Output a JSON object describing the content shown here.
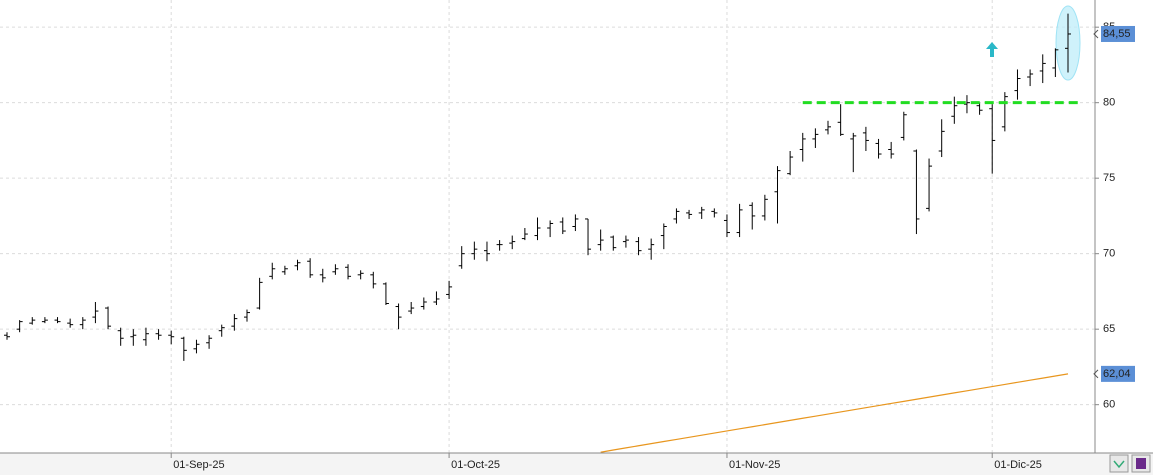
{
  "chart_data": {
    "type": "ohlc",
    "color": "#000000",
    "categories": [
      null,
      null,
      null,
      null,
      null,
      null,
      null,
      null,
      null,
      null,
      null,
      null,
      null,
      "01-Sep-25",
      null,
      null,
      null,
      null,
      null,
      null,
      null,
      null,
      null,
      null,
      null,
      null,
      null,
      null,
      null,
      null,
      null,
      null,
      null,
      null,
      null,
      "01-Oct-25",
      null,
      null,
      null,
      null,
      null,
      null,
      null,
      null,
      null,
      null,
      null,
      null,
      null,
      null,
      null,
      null,
      null,
      null,
      null,
      null,
      null,
      "01-Nov-25",
      null,
      null,
      null,
      null,
      null,
      null,
      null,
      null,
      null,
      null,
      null,
      null,
      null,
      null,
      null,
      null,
      null,
      null,
      null,
      null,
      "01-Dic-25",
      null,
      null,
      null,
      null,
      null,
      null
    ],
    "open": [
      64.6,
      65.0,
      65.4,
      65.5,
      65.6,
      65.4,
      65.3,
      65.8,
      66.4,
      64.9,
      64.5,
      64.3,
      64.7,
      64.6,
      64.4,
      63.7,
      64.1,
      64.9,
      65.2,
      65.8,
      66.4,
      68.5,
      68.8,
      69.2,
      69.5,
      68.6,
      68.8,
      69.1,
      68.6,
      68.6,
      68.0,
      66.5,
      66.2,
      66.5,
      66.8,
      67.3,
      69.2,
      70.0,
      70.2,
      70.6,
      70.7,
      71.0,
      71.2,
      71.7,
      72.1,
      71.8,
      72.3,
      70.6,
      71.1,
      70.8,
      70.8,
      70.3,
      71.2,
      72.3,
      72.7,
      72.7,
      72.8,
      72.2,
      71.4,
      73.2,
      72.5,
      74.1,
      75.3,
      76.9,
      77.6,
      78.2,
      78.7,
      77.6,
      78.0,
      77.3,
      76.9,
      77.7,
      76.8,
      73.0,
      76.8,
      79.1,
      79.9,
      79.8,
      79.6,
      78.4,
      80.8,
      81.7,
      82.1,
      82.3,
      83.6
    ],
    "high": [
      64.8,
      65.6,
      65.8,
      65.8,
      65.8,
      65.7,
      65.8,
      66.8,
      66.5,
      65.1,
      65.0,
      65.1,
      65.0,
      64.9,
      64.5,
      64.3,
      64.6,
      65.3,
      66.0,
      66.3,
      68.4,
      69.4,
      69.2,
      69.6,
      69.7,
      69.0,
      69.3,
      69.3,
      68.9,
      68.8,
      68.1,
      66.7,
      66.8,
      67.1,
      67.5,
      68.2,
      70.5,
      70.8,
      70.8,
      70.9,
      71.2,
      71.7,
      72.4,
      72.2,
      72.4,
      72.6,
      72.3,
      71.6,
      71.2,
      71.2,
      71.1,
      71.0,
      72.0,
      73.0,
      72.9,
      73.1,
      73.0,
      72.6,
      73.3,
      73.4,
      73.9,
      75.8,
      76.8,
      78.0,
      78.3,
      78.8,
      79.9,
      78.0,
      78.4,
      77.6,
      77.4,
      79.4,
      76.9,
      76.3,
      78.9,
      80.4,
      80.5,
      80.0,
      79.9,
      80.7,
      82.2,
      82.2,
      83.2,
      83.6,
      85.9
    ],
    "low": [
      64.3,
      64.8,
      65.3,
      65.4,
      65.4,
      65.1,
      65.0,
      65.4,
      65.0,
      63.9,
      63.9,
      63.9,
      64.3,
      64.0,
      62.9,
      63.4,
      63.7,
      64.5,
      64.9,
      65.5,
      66.3,
      68.3,
      68.6,
      68.9,
      68.4,
      68.1,
      68.6,
      68.3,
      68.3,
      67.7,
      66.6,
      65.0,
      66.0,
      66.3,
      66.6,
      67.0,
      69.0,
      69.6,
      69.5,
      70.2,
      70.3,
      70.9,
      70.9,
      71.1,
      71.3,
      71.5,
      69.9,
      70.2,
      70.2,
      70.4,
      69.9,
      69.6,
      70.3,
      72.0,
      72.3,
      72.3,
      72.4,
      71.1,
      71.1,
      71.6,
      72.2,
      72.0,
      75.2,
      76.1,
      77.0,
      77.9,
      77.8,
      75.4,
      76.8,
      76.3,
      76.3,
      77.5,
      71.3,
      72.8,
      76.4,
      78.6,
      79.3,
      79.2,
      75.3,
      78.1,
      80.2,
      81.1,
      81.3,
      81.7,
      82.0
    ],
    "close": [
      64.5,
      65.5,
      65.6,
      65.6,
      65.5,
      65.3,
      65.6,
      66.2,
      65.2,
      64.4,
      64.6,
      64.7,
      64.6,
      64.5,
      63.6,
      64.0,
      64.4,
      65.1,
      65.7,
      66.1,
      68.1,
      69.0,
      69.0,
      69.4,
      68.6,
      68.4,
      69.0,
      68.5,
      68.7,
      68.0,
      66.7,
      65.8,
      66.4,
      66.8,
      67.0,
      67.8,
      70.0,
      70.3,
      70.0,
      70.6,
      70.8,
      71.3,
      71.7,
      72.0,
      71.5,
      72.3,
      70.3,
      70.9,
      70.4,
      70.9,
      70.2,
      70.6,
      71.8,
      72.8,
      72.6,
      72.9,
      72.7,
      71.4,
      72.9,
      72.5,
      73.6,
      75.5,
      76.4,
      77.6,
      77.9,
      78.4,
      77.9,
      77.8,
      77.5,
      76.6,
      76.6,
      79.2,
      72.3,
      75.8,
      78.1,
      79.8,
      80.0,
      79.5,
      77.5,
      80.4,
      81.6,
      81.9,
      82.6,
      83.5,
      84.55
    ],
    "moving_average": {
      "color": "#e8961e",
      "values": [
        null,
        null,
        null,
        null,
        null,
        null,
        null,
        null,
        null,
        null,
        null,
        null,
        null,
        null,
        null,
        null,
        null,
        null,
        null,
        null,
        null,
        null,
        null,
        null,
        null,
        null,
        null,
        null,
        null,
        null,
        null,
        null,
        null,
        null,
        null,
        null,
        null,
        null,
        null,
        null,
        null,
        null,
        null,
        null,
        null,
        null,
        null,
        56.85,
        57.0,
        57.14,
        57.28,
        57.42,
        57.56,
        57.7,
        57.84,
        57.98,
        58.12,
        58.26,
        58.4,
        58.54,
        58.68,
        58.82,
        58.96,
        59.1,
        59.24,
        59.38,
        59.52,
        59.66,
        59.8,
        59.94,
        60.08,
        60.22,
        60.36,
        60.5,
        60.64,
        60.78,
        60.92,
        61.06,
        61.2,
        61.34,
        61.48,
        61.62,
        61.76,
        61.9,
        62.04
      ]
    },
    "hlines": [
      {
        "value": 80,
        "color": "#22dd22",
        "dashed": true
      }
    ],
    "price_tags": [
      {
        "value": 84.55,
        "label": "84,55",
        "color": "#5b8fd6"
      },
      {
        "value": 62.04,
        "label": "62,04",
        "color": "#5b8fd6"
      }
    ],
    "ylim": [
      56.8,
      86.8
    ],
    "yticks": [
      60,
      65,
      70,
      75,
      80,
      85
    ],
    "grid": true
  }
}
